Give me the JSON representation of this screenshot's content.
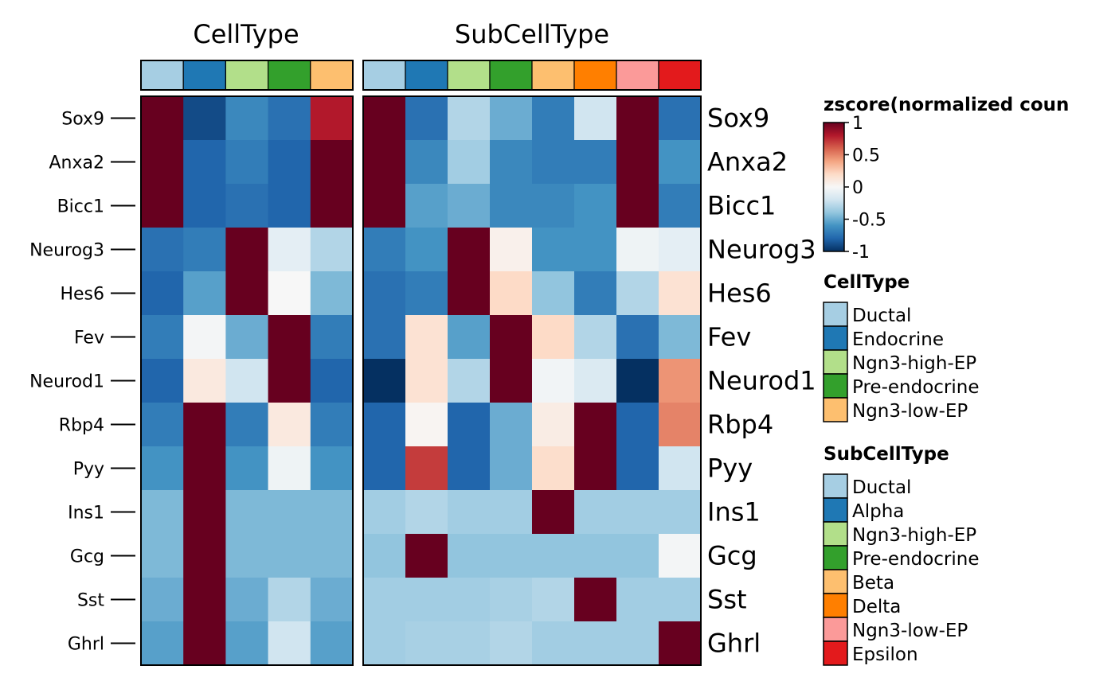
{
  "chart_data": {
    "type": "heatmap",
    "genes": [
      "Sox9",
      "Anxa2",
      "Bicc1",
      "Neurog3",
      "Hes6",
      "Fev",
      "Neurod1",
      "Rbp4",
      "Pyy",
      "Ins1",
      "Gcg",
      "Sst",
      "Ghrl"
    ],
    "panels": [
      {
        "title": "CellType",
        "columns": [
          "Ductal",
          "Endocrine",
          "Ngn3-high-EP",
          "Pre-endocrine",
          "Ngn3-low-EP"
        ],
        "values": [
          [
            1.0,
            -0.9,
            -0.65,
            -0.75,
            0.8
          ],
          [
            1.0,
            -0.8,
            -0.7,
            -0.8,
            1.0
          ],
          [
            1.0,
            -0.8,
            -0.75,
            -0.8,
            1.0
          ],
          [
            -0.75,
            -0.7,
            1.0,
            -0.1,
            -0.3
          ],
          [
            -0.8,
            -0.55,
            1.0,
            0.0,
            -0.45
          ],
          [
            -0.7,
            -0.02,
            -0.5,
            1.0,
            -0.7
          ],
          [
            -0.8,
            0.1,
            -0.2,
            1.0,
            -0.8
          ],
          [
            -0.7,
            1.0,
            -0.7,
            0.1,
            -0.7
          ],
          [
            -0.6,
            1.0,
            -0.6,
            -0.05,
            -0.6
          ],
          [
            -0.45,
            1.0,
            -0.45,
            -0.45,
            -0.45
          ],
          [
            -0.45,
            1.0,
            -0.45,
            -0.45,
            -0.45
          ],
          [
            -0.5,
            1.0,
            -0.5,
            -0.3,
            -0.5
          ],
          [
            -0.55,
            1.0,
            -0.55,
            -0.2,
            -0.55
          ]
        ]
      },
      {
        "title": "SubCellType",
        "columns": [
          "Ductal",
          "Alpha",
          "Ngn3-high-EP",
          "Pre-endocrine",
          "Beta",
          "Delta",
          "Ngn3-low-EP",
          "Epsilon"
        ],
        "values": [
          [
            1.0,
            -0.75,
            -0.3,
            -0.5,
            -0.7,
            -0.2,
            1.0,
            -0.75
          ],
          [
            1.0,
            -0.65,
            -0.35,
            -0.65,
            -0.7,
            -0.7,
            1.0,
            -0.6
          ],
          [
            1.0,
            -0.55,
            -0.5,
            -0.65,
            -0.65,
            -0.6,
            1.0,
            -0.7
          ],
          [
            -0.7,
            -0.6,
            1.0,
            0.05,
            -0.6,
            -0.6,
            -0.05,
            -0.1
          ],
          [
            -0.75,
            -0.7,
            1.0,
            0.2,
            -0.4,
            -0.7,
            -0.3,
            0.15
          ],
          [
            -0.75,
            0.15,
            -0.55,
            1.0,
            0.2,
            -0.3,
            -0.75,
            -0.45
          ],
          [
            -1.0,
            0.15,
            -0.3,
            1.0,
            -0.03,
            -0.15,
            -1.0,
            0.45
          ],
          [
            -0.8,
            0.02,
            -0.8,
            -0.5,
            0.08,
            1.0,
            -0.8,
            0.5
          ],
          [
            -0.8,
            0.7,
            -0.8,
            -0.5,
            0.18,
            1.0,
            -0.8,
            -0.2
          ],
          [
            -0.35,
            -0.3,
            -0.35,
            -0.35,
            1.0,
            -0.35,
            -0.35,
            -0.35
          ],
          [
            -0.4,
            1.0,
            -0.4,
            -0.4,
            -0.4,
            -0.4,
            -0.4,
            -0.02
          ],
          [
            -0.35,
            -0.35,
            -0.35,
            -0.33,
            -0.3,
            1.0,
            -0.35,
            -0.35
          ],
          [
            -0.35,
            -0.33,
            -0.33,
            -0.3,
            -0.35,
            -0.35,
            -0.35,
            1.0
          ]
        ]
      }
    ],
    "color_scale": {
      "title": "zscore(normalized coun",
      "min": -1,
      "max": 1,
      "ticks": [
        "1",
        "0.5",
        "0",
        "-0.5",
        "-1"
      ],
      "tick_values": [
        1,
        0.5,
        0,
        -0.5,
        -1
      ],
      "stops": [
        "#053061",
        "#2166AC",
        "#4393C3",
        "#92C5DE",
        "#D1E5F0",
        "#F7F7F7",
        "#FDDBC7",
        "#F4A582",
        "#D6604D",
        "#B2182B",
        "#67001F"
      ]
    },
    "annotation_legends": [
      {
        "title": "CellType",
        "items": [
          {
            "label": "Ductal",
            "color": "#A6CEE3"
          },
          {
            "label": "Endocrine",
            "color": "#1F78B4"
          },
          {
            "label": "Ngn3-high-EP",
            "color": "#B2DF8A"
          },
          {
            "label": "Pre-endocrine",
            "color": "#33A02C"
          },
          {
            "label": "Ngn3-low-EP",
            "color": "#FDBF6F"
          }
        ]
      },
      {
        "title": "SubCellType",
        "items": [
          {
            "label": "Ductal",
            "color": "#A6CEE3"
          },
          {
            "label": "Alpha",
            "color": "#1F78B4"
          },
          {
            "label": "Ngn3-high-EP",
            "color": "#B2DF8A"
          },
          {
            "label": "Pre-endocrine",
            "color": "#33A02C"
          },
          {
            "label": "Beta",
            "color": "#FDBF6F"
          },
          {
            "label": "Delta",
            "color": "#FF7F00"
          },
          {
            "label": "Ngn3-low-EP",
            "color": "#FB9A99"
          },
          {
            "label": "Epsilon",
            "color": "#E31A1C"
          }
        ]
      }
    ]
  }
}
